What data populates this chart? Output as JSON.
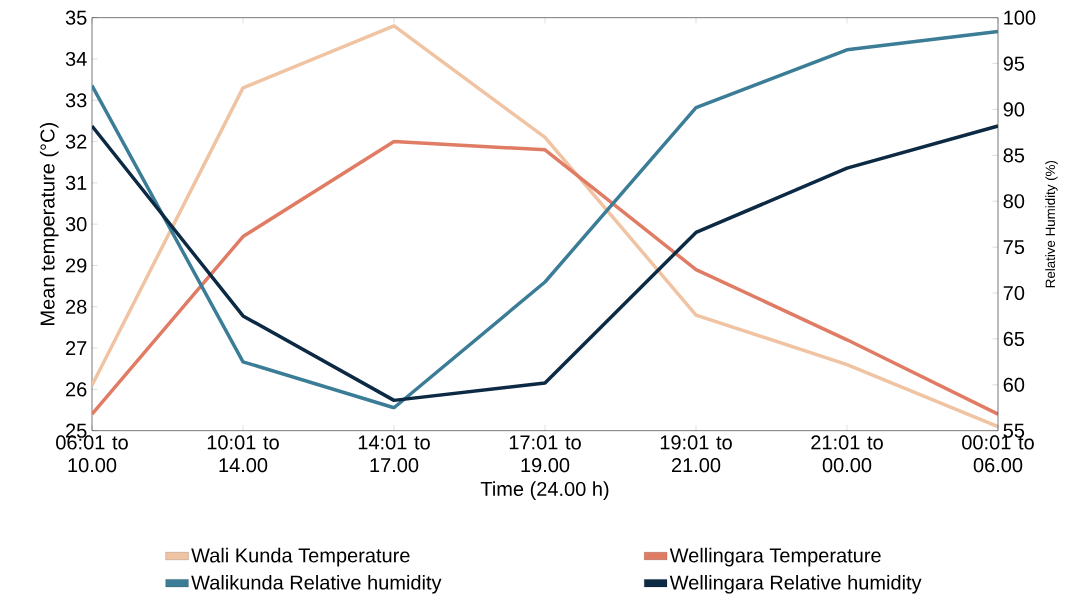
{
  "chart_data": {
    "type": "line",
    "xlabel": "Time (24.00 h)",
    "ylabel": "Mean temperature (°C)",
    "y2label": "Relative Humidity (%)",
    "categories": [
      "06:01 to 10.00",
      "10:01 to 14.00",
      "14:01 to 17.00",
      "17:01 to 19.00",
      "19:01 to 21.00",
      "21:01 to 00.00",
      "00:01 to 06.00"
    ],
    "series": [
      {
        "name": "Wali Kunda Temperature",
        "color": "#f0c3a3",
        "values": [
          26.1,
          33.3,
          34.8,
          32.1,
          27.8,
          26.6,
          25.1
        ]
      },
      {
        "name": "Wellingara Temperature",
        "color": "#e07b64",
        "values": [
          25.4,
          29.7,
          32.0,
          31.8,
          28.9,
          27.2,
          25.4
        ]
      },
      {
        "name": "Walikunda Relative humidity",
        "color": "#3b7d96",
        "axis": "y2",
        "values": [
          92.6,
          62.5,
          57.5,
          71.2,
          90.2,
          96.5,
          98.5
        ]
      },
      {
        "name": "Wellingara Relative humidity",
        "color": "#0d2a45",
        "axis": "y2",
        "values": [
          88.2,
          67.5,
          58.3,
          60.2,
          76.6,
          83.6,
          88.2
        ]
      }
    ],
    "ylim": [
      25,
      35
    ],
    "yticks": [
      25,
      26,
      27,
      28,
      29,
      30,
      31,
      32,
      33,
      34,
      35
    ],
    "y2lim": [
      55,
      100
    ],
    "y2ticks": [
      55,
      60,
      65,
      70,
      75,
      80,
      85,
      90,
      95,
      100
    ],
    "legend": "bottom",
    "grid": false,
    "marker": "none",
    "line_style": "solid"
  }
}
